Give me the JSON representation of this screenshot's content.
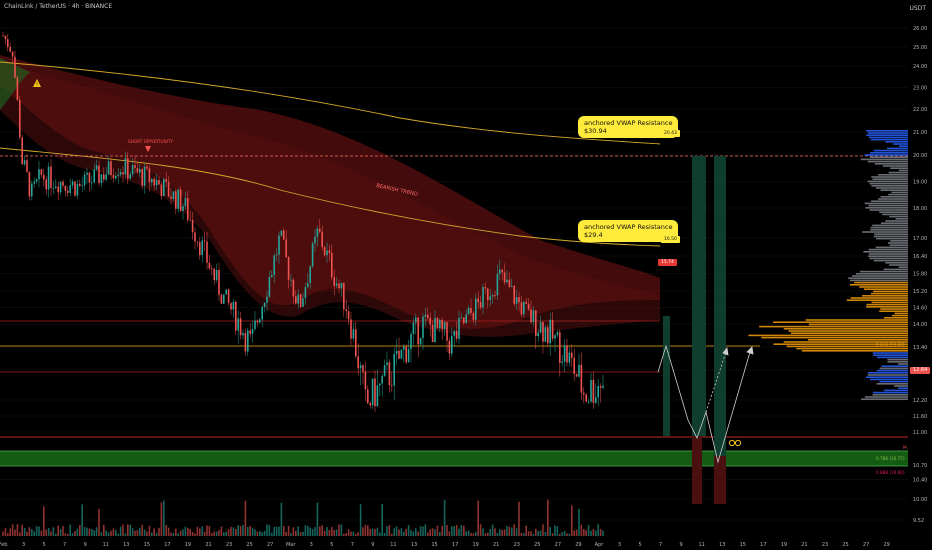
{
  "header": {
    "title": "ChainLink / TetherUS · 4h · BINANCE"
  },
  "currency": "USDT",
  "annotations": {
    "short_opportunity": "SHORT OPPORTUNITY",
    "bearish_trend": "BEARISH TREND",
    "warning_icon": "warning-triangle",
    "vwap_callout_upper_line1": "anchored VWAP Resistance",
    "vwap_callout_upper_line2": "$30.94",
    "vwap_callout_lower_line1": "anchored VWAP Resistance",
    "vwap_callout_lower_line2": "$29.4",
    "vwap_tag_upper": "20.43",
    "vwap_tag_lower": "16.50",
    "vwap_tag_red": "15.74",
    "fib_label_upper": "0.618 (13.60)",
    "fib_label_lower": "0.786 (10.77)",
    "fib_label_bottom": "0.888 (10.60)",
    "side_marker": "M",
    "cycle_icon": "infinity-arrows-icon"
  },
  "price_axis": {
    "labels": [
      "26.00",
      "25.00",
      "24.00",
      "23.00",
      "22.00",
      "21.00",
      "20.00",
      "19.00",
      "18.00",
      "17.00",
      "16.40",
      "15.80",
      "15.20",
      "14.60",
      "14.00",
      "13.40",
      "12.80",
      "12.20",
      "11.60",
      "11.00",
      "10.70",
      "10.40",
      "10.00",
      "9.52"
    ],
    "current_price": "12.64"
  },
  "time_axis": {
    "labels": [
      "Feb",
      "3",
      "5",
      "7",
      "9",
      "11",
      "13",
      "15",
      "17",
      "19",
      "21",
      "23",
      "25",
      "27",
      "Mar",
      "3",
      "5",
      "7",
      "9",
      "11",
      "13",
      "15",
      "17",
      "19",
      "21",
      "23",
      "25",
      "27",
      "29",
      "Apr",
      "3",
      "5",
      "7",
      "9",
      "11",
      "13",
      "15",
      "17",
      "19",
      "21",
      "23",
      "25",
      "27",
      "29"
    ]
  },
  "colors": {
    "background": "#000000",
    "bull": "#26a69a",
    "bear": "#ef5350",
    "vwap": "#d4a92b",
    "ribbon": "#8b1a1a",
    "fib_zone": "#1b7a1b",
    "callout": "#ffeb3b",
    "profile_grey": "#7d8188",
    "profile_orange": "#f59e0b",
    "profile_blue": "#2962ff"
  },
  "chart_data": {
    "type": "candlestick",
    "symbol": "ChainLink / TetherUS",
    "timeframe": "4h",
    "exchange": "BINANCE",
    "ylabel": "USDT",
    "ylim": [
      9.3,
      26.6
    ],
    "price_path": [
      {
        "x": "Feb 1",
        "y": 25.6
      },
      {
        "x": "Feb 2",
        "y": 24.8
      },
      {
        "x": "Feb 3",
        "y": 19.8
      },
      {
        "x": "Feb 4",
        "y": 18.5
      },
      {
        "x": "Feb 5",
        "y": 19.2
      },
      {
        "x": "Feb 9",
        "y": 18.8
      },
      {
        "x": "Feb 13",
        "y": 19.6
      },
      {
        "x": "Feb 17",
        "y": 19.0
      },
      {
        "x": "Feb 20",
        "y": 18.1
      },
      {
        "x": "Feb 24",
        "y": 15.0
      },
      {
        "x": "Feb 27",
        "y": 13.4
      },
      {
        "x": "Mar 2",
        "y": 17.0
      },
      {
        "x": "Mar 4",
        "y": 14.6
      },
      {
        "x": "Mar 6",
        "y": 17.2
      },
      {
        "x": "Mar 9",
        "y": 14.6
      },
      {
        "x": "Mar 11",
        "y": 12.0
      },
      {
        "x": "Mar 14",
        "y": 12.9
      },
      {
        "x": "Mar 17",
        "y": 14.1
      },
      {
        "x": "Mar 20",
        "y": 13.5
      },
      {
        "x": "Mar 25",
        "y": 15.7
      },
      {
        "x": "Mar 28",
        "y": 14.3
      },
      {
        "x": "Mar 30",
        "y": 13.8
      },
      {
        "x": "Apr 1",
        "y": 13.2
      },
      {
        "x": "Apr 3",
        "y": 12.3
      },
      {
        "x": "Apr 5",
        "y": 12.64
      }
    ],
    "resistance_levels": [
      20.0,
      14.1,
      12.9
    ],
    "support_levels": [
      11.4,
      10.77,
      10.6
    ],
    "projection_path": [
      {
        "x": "Apr 5",
        "y": 12.64
      },
      {
        "x": "Apr 6",
        "y": 13.3
      },
      {
        "x": "Apr 8",
        "y": 11.5
      },
      {
        "x": "Apr 9",
        "y": 10.77
      },
      {
        "x": "Apr 10",
        "y": 11.7
      },
      {
        "x": "Apr 11",
        "y": 10.6
      },
      {
        "x": "Apr 14",
        "y": 13.4
      }
    ]
  }
}
